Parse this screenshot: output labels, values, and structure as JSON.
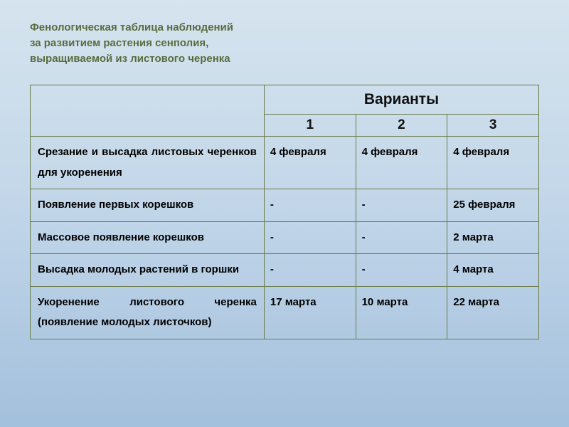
{
  "title_line1": "Фенологическая таблица наблюдений",
  "title_line2": "за развитием растения сенполия,",
  "title_line3": "выращиваемой из листового черенка",
  "header_group": "Варианты",
  "columns": [
    "1",
    "2",
    "3"
  ],
  "rows": [
    {
      "stage": "Срезание и высадка листовых черенков для укоренения",
      "v1": "4 февраля",
      "v2": "4 февраля",
      "v3": "4 февраля"
    },
    {
      "stage": "Появление  первых корешков",
      "v1": "-",
      "v2": "-",
      "v3": "25 февраля"
    },
    {
      "stage": "Массовое появление корешков",
      "v1": "-",
      "v2": "-",
      "v3": "2 марта"
    },
    {
      "stage": "Высадка молодых растений в горшки",
      "v1": "-",
      "v2": "-",
      "v3": "4 марта"
    },
    {
      "stage": "Укоренение листового черенка (появление молодых листочков)",
      "v1": "17 марта",
      "v2": " 10 марта",
      "v3": "22 марта"
    }
  ],
  "colors": {
    "title_color": "#5a6b3f",
    "border_color": "#6a7a48",
    "text_color": "#000000",
    "bg_gradient_top": "#d5e4ee",
    "bg_gradient_bottom": "#a3c0dc"
  },
  "fonts": {
    "title_size_pt": 11,
    "header_group_size_pt": 16,
    "header_num_size_pt": 14,
    "cell_size_pt": 11
  }
}
